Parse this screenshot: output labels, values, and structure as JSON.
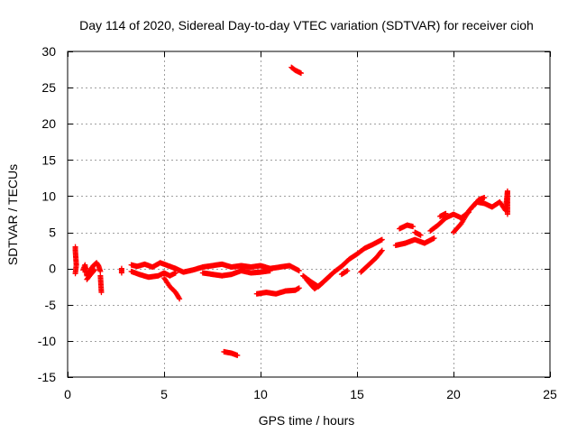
{
  "chart_data": {
    "type": "scatter",
    "title": "Day 114 of 2020, Sidereal Day-to-day VTEC variation (SDTVAR) for receiver cioh",
    "xlabel": "GPS time / hours",
    "ylabel": "SDTVAR / TECUs",
    "xlim": [
      0,
      25
    ],
    "ylim": [
      -15,
      30
    ],
    "xticks": [
      0,
      5,
      10,
      15,
      20,
      25
    ],
    "yticks": [
      -15,
      -10,
      -5,
      0,
      5,
      10,
      15,
      20,
      25,
      30
    ],
    "xtick_labels": [
      "0",
      "5",
      "10",
      "15",
      "20",
      "25"
    ],
    "ytick_labels": [
      "-15",
      "-10",
      "-5",
      "0",
      "5",
      "10",
      "15",
      "20",
      "25",
      "30"
    ],
    "grid": true,
    "marker": "+",
    "series": [
      {
        "name": "SDTVAR",
        "color": "#ff0000",
        "segments": [
          [
            [
              0.4,
              3.0
            ],
            [
              0.4,
              2.5
            ],
            [
              0.45,
              0.5
            ],
            [
              0.4,
              -0.7
            ]
          ],
          [
            [
              0.8,
              -0.2
            ],
            [
              0.9,
              0.5
            ],
            [
              1.0,
              -1.0
            ],
            [
              1.1,
              -0.5
            ],
            [
              1.3,
              0.3
            ],
            [
              1.5,
              0.8
            ],
            [
              1.6,
              0.4
            ],
            [
              1.7,
              -0.4
            ]
          ],
          [
            [
              1.0,
              -1.5
            ],
            [
              1.2,
              -0.8
            ],
            [
              1.4,
              -0.2
            ]
          ],
          [
            [
              1.7,
              -1.0
            ],
            [
              1.75,
              -3.3
            ]
          ],
          [
            [
              2.8,
              0.0
            ],
            [
              2.8,
              -0.6
            ]
          ],
          [
            [
              3.3,
              0.5
            ],
            [
              3.6,
              0.3
            ],
            [
              4.0,
              0.6
            ],
            [
              4.4,
              0.2
            ],
            [
              4.8,
              0.8
            ],
            [
              5.2,
              0.4
            ],
            [
              5.6,
              0.0
            ],
            [
              6.0,
              -0.5
            ],
            [
              6.5,
              -0.2
            ],
            [
              7.0,
              0.2
            ],
            [
              7.5,
              0.4
            ],
            [
              8.0,
              0.6
            ],
            [
              8.5,
              0.2
            ],
            [
              9.0,
              0.4
            ],
            [
              9.5,
              0.2
            ],
            [
              10.0,
              0.4
            ],
            [
              10.5,
              0.0
            ],
            [
              11.0,
              0.2
            ],
            [
              11.5,
              0.4
            ],
            [
              12.0,
              -0.3
            ]
          ],
          [
            [
              3.3,
              -0.4
            ],
            [
              3.7,
              -0.8
            ],
            [
              4.2,
              -1.2
            ],
            [
              4.7,
              -1.0
            ],
            [
              5.0,
              -0.6
            ],
            [
              5.3,
              -1.0
            ],
            [
              5.6,
              -0.6
            ]
          ],
          [
            [
              5.0,
              -1.3
            ],
            [
              5.3,
              -2.5
            ],
            [
              5.6,
              -3.3
            ],
            [
              5.8,
              -4.2
            ]
          ],
          [
            [
              7.0,
              -0.6
            ],
            [
              7.5,
              -0.8
            ],
            [
              8.0,
              -1.0
            ],
            [
              8.5,
              -0.8
            ],
            [
              9.0,
              -0.3
            ],
            [
              9.5,
              -0.6
            ],
            [
              10.0,
              -0.5
            ],
            [
              10.5,
              -0.3
            ]
          ],
          [
            [
              9.8,
              -3.5
            ],
            [
              10.3,
              -3.3
            ],
            [
              10.8,
              -3.5
            ],
            [
              11.3,
              -3.1
            ],
            [
              11.8,
              -3.0
            ],
            [
              12.0,
              -2.7
            ]
          ],
          [
            [
              8.1,
              -11.5
            ],
            [
              8.5,
              -11.7
            ],
            [
              8.8,
              -12.0
            ]
          ],
          [
            [
              11.6,
              27.8
            ],
            [
              11.8,
              27.4
            ],
            [
              12.1,
              27.0
            ]
          ],
          [
            [
              12.2,
              -1.0
            ],
            [
              12.6,
              -1.8
            ],
            [
              13.0,
              -2.5
            ],
            [
              13.4,
              -1.5
            ],
            [
              13.8,
              -0.5
            ],
            [
              14.2,
              0.3
            ],
            [
              14.6,
              1.3
            ],
            [
              15.0,
              2.0
            ],
            [
              15.4,
              2.8
            ],
            [
              15.8,
              3.3
            ],
            [
              16.3,
              4.0
            ]
          ],
          [
            [
              12.4,
              -1.6
            ],
            [
              12.8,
              -2.8
            ],
            [
              13.2,
              -2.0
            ],
            [
              13.6,
              -1.0
            ]
          ],
          [
            [
              14.2,
              -0.8
            ],
            [
              14.5,
              -0.3
            ]
          ],
          [
            [
              15.2,
              -0.5
            ],
            [
              15.6,
              0.5
            ],
            [
              16.0,
              1.5
            ],
            [
              16.3,
              2.5
            ]
          ],
          [
            [
              17.0,
              3.2
            ],
            [
              17.5,
              3.5
            ],
            [
              18.0,
              4.0
            ],
            [
              18.5,
              3.5
            ],
            [
              19.0,
              4.2
            ]
          ],
          [
            [
              17.2,
              5.5
            ],
            [
              17.6,
              6.0
            ],
            [
              17.9,
              5.8
            ]
          ],
          [
            [
              18.0,
              5.0
            ],
            [
              18.3,
              4.6
            ]
          ],
          [
            [
              18.8,
              5.2
            ],
            [
              19.2,
              6.0
            ],
            [
              19.6,
              7.0
            ],
            [
              20.0,
              7.5
            ],
            [
              20.4,
              7.0
            ],
            [
              20.8,
              7.8
            ]
          ],
          [
            [
              19.3,
              7.2
            ],
            [
              19.6,
              7.6
            ]
          ],
          [
            [
              20.0,
              5.0
            ],
            [
              20.4,
              6.2
            ],
            [
              20.8,
              8.0
            ],
            [
              21.2,
              9.2
            ],
            [
              21.6,
              9.0
            ],
            [
              22.0,
              8.5
            ],
            [
              22.4,
              9.2
            ],
            [
              22.7,
              8.0
            ],
            [
              22.8,
              10.7
            ],
            [
              22.8,
              7.5
            ]
          ],
          [
            [
              21.0,
              8.5
            ],
            [
              21.3,
              9.5
            ],
            [
              21.6,
              9.8
            ]
          ]
        ]
      }
    ]
  }
}
